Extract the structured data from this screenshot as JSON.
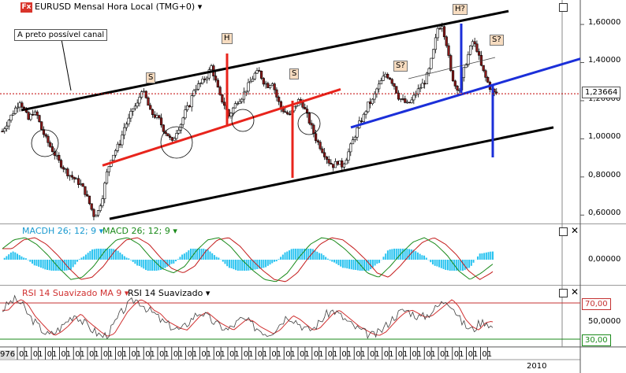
{
  "header": {
    "logo": "Fx",
    "title": "EURUSD Mensal Hora Local (TMG+0)",
    "macd_hist_label": "MACDH 26; 12; 9",
    "macd_label": "MACD 26; 12; 9",
    "rsi_ma_label": "RSI 14 Suavizado MA 9",
    "rsi_label": "RSI 14 Suavizado"
  },
  "note": "A preto possível canal",
  "annotations": [
    "S",
    "H",
    "S",
    "S?",
    "H?",
    "S?"
  ],
  "price_axis": [
    "1,60000",
    "1,40000",
    "1,20000",
    "1,00000",
    "0,80000",
    "0,60000"
  ],
  "current_price": "1,23664",
  "macd_axis": [
    "0,00000"
  ],
  "rsi_axis": [
    "70,00",
    "50,0000",
    "30,00"
  ],
  "time_axis": {
    "first": "976",
    "repeat": "01",
    "year_label": "2010"
  },
  "colors": {
    "up_candle": "#ffffff",
    "down_candle": "#8b1a1a",
    "channel": "#000000",
    "neckline_red": "#e8241c",
    "neckline_blue": "#1b2fd9",
    "current_line": "#c00000",
    "macd_hist": "#29c3f0",
    "macd_line": "#1a8a1a",
    "signal_line": "#c41a1a",
    "rsi_line": "#404040",
    "rsi_ma": "#d03030",
    "rsi_upper": "#c43030",
    "rsi_lower": "#1a8a1a"
  },
  "chart_data": [
    {
      "type": "candlestick",
      "title": "EURUSD Mensal Hora Local (TMG+0)",
      "ylim": [
        0.56,
        1.72
      ],
      "price_path": [
        1.04,
        1.08,
        1.12,
        1.16,
        1.2,
        1.15,
        1.1,
        1.14,
        1.12,
        1.05,
        1.0,
        0.96,
        0.92,
        0.88,
        0.85,
        0.82,
        0.8,
        0.78,
        0.76,
        0.72,
        0.66,
        0.6,
        0.62,
        0.7,
        0.82,
        0.9,
        0.94,
        0.98,
        1.06,
        1.1,
        1.16,
        1.18,
        1.26,
        1.21,
        1.14,
        1.12,
        1.1,
        1.05,
        1.02,
        0.98,
        1.04,
        1.08,
        1.14,
        1.18,
        1.26,
        1.28,
        1.3,
        1.33,
        1.38,
        1.3,
        1.22,
        1.18,
        1.12,
        1.16,
        1.2,
        1.22,
        1.26,
        1.3,
        1.34,
        1.35,
        1.3,
        1.28,
        1.3,
        1.22,
        1.16,
        1.14,
        1.12,
        1.16,
        1.2,
        1.18,
        1.12,
        1.06,
        1.0,
        0.96,
        0.92,
        0.88,
        0.86,
        0.88,
        0.86,
        0.9,
        0.96,
        1.02,
        1.08,
        1.12,
        1.18,
        1.2,
        1.26,
        1.3,
        1.34,
        1.32,
        1.28,
        1.22,
        1.2,
        1.18,
        1.2,
        1.24,
        1.27,
        1.3,
        1.36,
        1.46,
        1.58,
        1.6,
        1.5,
        1.35,
        1.28,
        1.26,
        1.36,
        1.44,
        1.51,
        1.47,
        1.38,
        1.32,
        1.27,
        1.24
      ],
      "current_price": 1.23664,
      "channel_lines": [
        [
          1.15,
          1.67
        ],
        [
          0.58,
          1.06
        ]
      ],
      "red_neckline": [
        0.86,
        1.26
      ],
      "blue_neckline": [
        1.06,
        1.42
      ],
      "ytick_labels": [
        "1,60000",
        "1,40000",
        "1,20000",
        "1,00000",
        "0,80000",
        "0,60000"
      ]
    },
    {
      "type": "bar",
      "title": "MACDH 26; 12; 9 / MACD 26; 12; 9",
      "zero_label": "0,00000",
      "macd_path": [
        0.5,
        0.9,
        1.0,
        0.7,
        0.2,
        -0.4,
        -0.9,
        -0.8,
        -0.3,
        0.4,
        0.9,
        1.0,
        0.7,
        0.1,
        -0.4,
        -0.6,
        -0.3,
        0.4,
        0.9,
        1.0,
        0.6,
        0.0,
        -0.5,
        -0.9,
        -1.0,
        -0.6,
        0.1,
        0.7,
        1.0,
        0.9,
        0.5,
        0.0,
        -0.6,
        -0.8,
        -0.3,
        0.3,
        0.8,
        1.0,
        0.7,
        0.2,
        -0.5,
        -0.9,
        -0.6,
        -0.2
      ]
    },
    {
      "type": "line",
      "title": "RSI 14 Suavizado",
      "levels": [
        70,
        30
      ],
      "ytick_labels": [
        "70,00",
        "50,0000",
        "30,00"
      ],
      "rsi_path": [
        62,
        70,
        74,
        68,
        56,
        48,
        40,
        34,
        38,
        44,
        52,
        58,
        50,
        44,
        38,
        33,
        36,
        48,
        60,
        68,
        74,
        70,
        62,
        58,
        50,
        46,
        42,
        40,
        48,
        56,
        60,
        54,
        48,
        44,
        40,
        46,
        52,
        50,
        44,
        40,
        36,
        40,
        48,
        56,
        52,
        46,
        40,
        42,
        50,
        58,
        62,
        56,
        50,
        44,
        40,
        36,
        34,
        38,
        46,
        54,
        60,
        62,
        58,
        54,
        56,
        62,
        68,
        74,
        66,
        52,
        44,
        40,
        48,
        50,
        42
      ]
    }
  ]
}
